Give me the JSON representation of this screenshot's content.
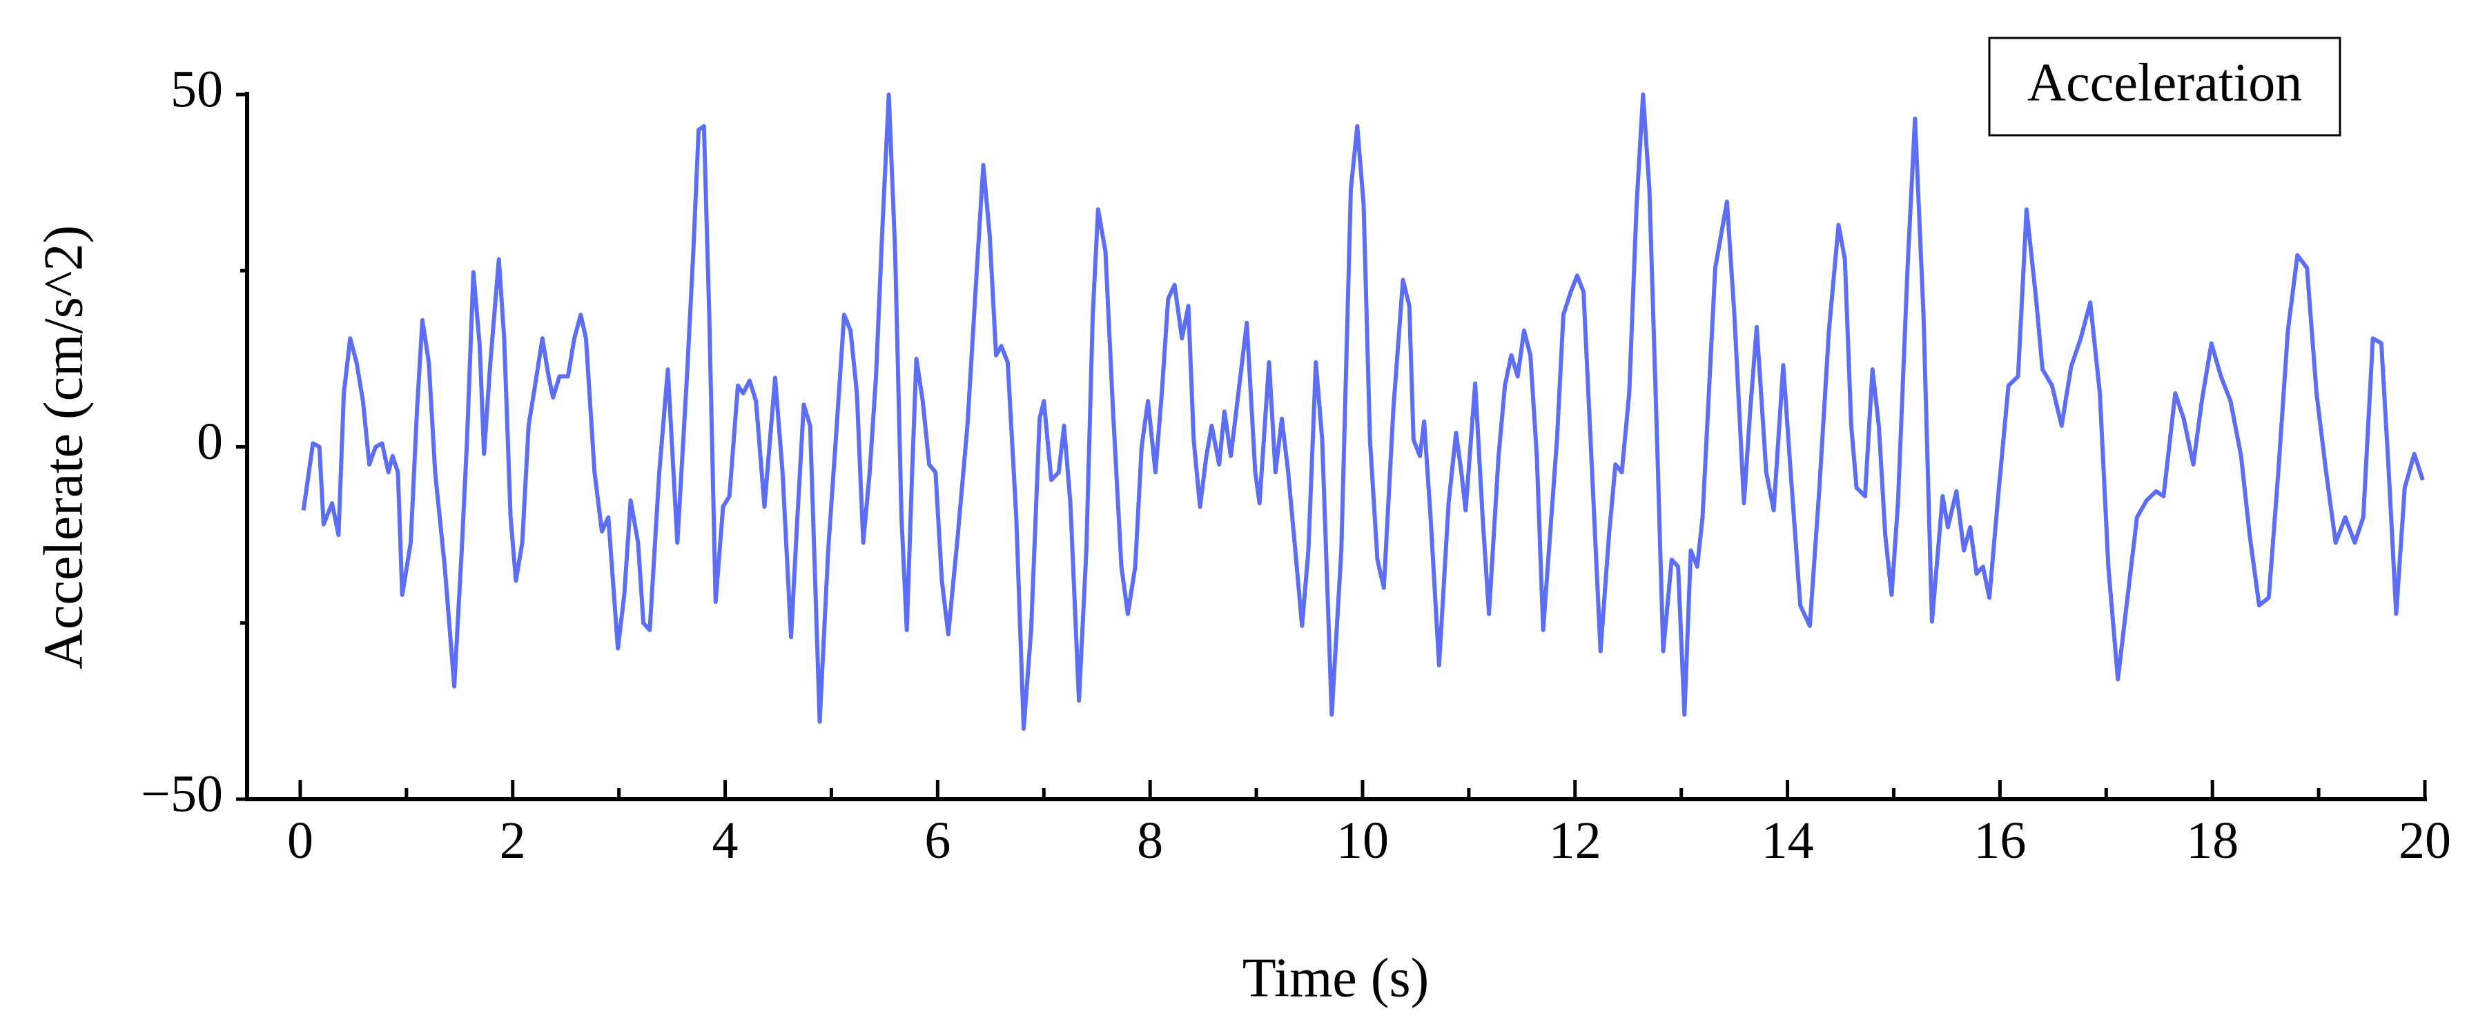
{
  "chart_data": {
    "type": "line",
    "ylabel": "Accelerate (cm/s^2)",
    "xlabel": "Time (s)",
    "legend": "upper right",
    "xlim": [
      -0.5,
      20
    ],
    "ylim": [
      -50,
      50
    ],
    "xticks": [
      0,
      2,
      4,
      6,
      8,
      10,
      12,
      14,
      16,
      18,
      20
    ],
    "xminor_ticks": [
      1,
      3,
      5,
      7,
      9,
      11,
      13,
      15,
      17,
      19
    ],
    "yticks": [
      {
        "value": -50,
        "label": "−50"
      },
      0,
      50
    ],
    "yminor_ticks": [
      -25,
      25
    ],
    "x": [
      0.03,
      0.12,
      0.18,
      0.22,
      0.3,
      0.36,
      0.41,
      0.47,
      0.53,
      0.59,
      0.65,
      0.71,
      0.77,
      0.83,
      0.87,
      0.92,
      0.96,
      1.04,
      1.1,
      1.15,
      1.21,
      1.27,
      1.36,
      1.45,
      1.52,
      1.57,
      1.63,
      1.69,
      1.73,
      1.79,
      1.87,
      1.92,
      1.98,
      2.03,
      2.09,
      2.15,
      2.21,
      2.28,
      2.34,
      2.38,
      2.44,
      2.52,
      2.58,
      2.64,
      2.69,
      2.77,
      2.84,
      2.9,
      2.99,
      3.05,
      3.11,
      3.18,
      3.23,
      3.29,
      3.38,
      3.46,
      3.55,
      3.64,
      3.7,
      3.75,
      3.8,
      3.85,
      3.91,
      3.98,
      4.04,
      4.12,
      4.17,
      4.23,
      4.29,
      4.37,
      4.47,
      4.54,
      4.62,
      4.68,
      4.74,
      4.8,
      4.89,
      4.97,
      5.05,
      5.12,
      5.18,
      5.24,
      5.3,
      5.36,
      5.42,
      5.48,
      5.54,
      5.6,
      5.66,
      5.71,
      5.76,
      5.8,
      5.86,
      5.92,
      5.98,
      6.04,
      6.1,
      6.19,
      6.28,
      6.37,
      6.43,
      6.49,
      6.55,
      6.6,
      6.66,
      6.74,
      6.81,
      6.88,
      6.96,
      7.0,
      7.07,
      7.14,
      7.19,
      7.25,
      7.33,
      7.4,
      7.46,
      7.51,
      7.58,
      7.65,
      7.73,
      7.79,
      7.86,
      7.92,
      7.98,
      8.05,
      8.11,
      8.17,
      8.23,
      8.3,
      8.36,
      8.41,
      8.47,
      8.53,
      8.58,
      8.65,
      8.7,
      8.76,
      8.85,
      8.91,
      8.99,
      9.03,
      9.12,
      9.18,
      9.24,
      9.3,
      9.36,
      9.43,
      9.49,
      9.56,
      9.62,
      9.71,
      9.8,
      9.89,
      9.95,
      10.01,
      10.07,
      10.14,
      10.2,
      10.29,
      10.38,
      10.44,
      10.48,
      10.54,
      10.58,
      10.64,
      10.72,
      10.81,
      10.88,
      10.93,
      10.97,
      11.06,
      11.13,
      11.19,
      11.28,
      11.34,
      11.4,
      11.46,
      11.52,
      11.58,
      11.64,
      11.7,
      11.77,
      11.83,
      11.89,
      11.96,
      12.02,
      12.08,
      12.14,
      12.24,
      12.32,
      12.38,
      12.44,
      12.51,
      12.58,
      12.64,
      12.7,
      12.77,
      12.83,
      12.91,
      12.97,
      13.03,
      13.09,
      13.15,
      13.2,
      13.32,
      13.43,
      13.5,
      13.59,
      13.65,
      13.71,
      13.8,
      13.87,
      13.96,
      14.03,
      14.12,
      14.21,
      14.3,
      14.39,
      14.48,
      14.54,
      14.6,
      14.65,
      14.73,
      14.8,
      14.86,
      14.92,
      14.98,
      15.04,
      15.13,
      15.2,
      15.28,
      15.36,
      15.46,
      15.51,
      15.59,
      15.66,
      15.72,
      15.78,
      15.84,
      15.9,
      15.99,
      16.08,
      16.17,
      16.25,
      16.34,
      16.4,
      16.49,
      16.58,
      16.67,
      16.76,
      16.85,
      16.94,
      17.02,
      17.11,
      17.2,
      17.29,
      17.38,
      17.47,
      17.54,
      17.65,
      17.73,
      17.82,
      17.9,
      17.99,
      18.08,
      18.17,
      18.27,
      18.35,
      18.44,
      18.53,
      18.62,
      18.71,
      18.8,
      18.89,
      18.98,
      19.07,
      19.16,
      19.25,
      19.34,
      19.42,
      19.51,
      19.59,
      19.66,
      19.73,
      19.81,
      19.9,
      19.98
    ],
    "series": [
      {
        "name": "Acceleration",
        "color": "#5b6ef5",
        "values": [
          -9,
          0.5,
          0,
          -11,
          -8,
          -12.5,
          7.6,
          15.4,
          12,
          6.5,
          -2.5,
          0,
          0.5,
          -3.6,
          -1.3,
          -3.6,
          -21,
          -13.6,
          5.4,
          18,
          12,
          -3.6,
          -17,
          -34,
          -14.7,
          1,
          24.8,
          14.3,
          -1,
          12,
          26.6,
          15.4,
          -10,
          -19,
          -13.6,
          3,
          8.7,
          15.4,
          9.8,
          7,
          10,
          10,
          15.4,
          18.75,
          15.4,
          -3.6,
          -12,
          -10,
          -28.6,
          -21,
          -7.6,
          -13.6,
          -25,
          -26,
          -3.6,
          11,
          -13.6,
          10,
          27.7,
          45,
          45.5,
          18.75,
          -22,
          -8.5,
          -7,
          8.7,
          7.6,
          9.4,
          6.5,
          -8.5,
          9.8,
          -3.6,
          -27,
          -10,
          6,
          3,
          -39,
          -14.7,
          3,
          18.75,
          16.5,
          7.6,
          -13.6,
          -3.6,
          10,
          31,
          50,
          27.7,
          -10,
          -26,
          -3.6,
          12.5,
          6.5,
          -2.5,
          -3.6,
          -19,
          -26.6,
          -12.5,
          3,
          25.4,
          40,
          30,
          13,
          14.3,
          12,
          -10,
          -40,
          -26,
          4,
          6.5,
          -4.7,
          -3.6,
          3,
          -8,
          -36,
          -14.7,
          18.75,
          33.7,
          27.7,
          5.4,
          -17,
          -23.7,
          -17,
          0,
          6.5,
          -3.6,
          7.6,
          21,
          23,
          15.4,
          20,
          1,
          -8.5,
          -1.3,
          3,
          -2.5,
          5,
          -1.3,
          10,
          17.6,
          -3.6,
          -8,
          12,
          -3.6,
          4,
          -3.6,
          -13.6,
          -25.4,
          -14.7,
          12,
          1,
          -38,
          -14.7,
          36.6,
          45.5,
          34.4,
          1,
          -16,
          -20,
          5.4,
          23.7,
          20,
          1,
          -1.3,
          3.6,
          -10,
          -31,
          -8,
          2,
          -3.6,
          -9,
          9,
          -10,
          -23.7,
          -1.3,
          8.7,
          13,
          10,
          16.5,
          13,
          -1.3,
          -26,
          -11.4,
          1,
          18.75,
          22,
          24.3,
          22,
          3,
          -29,
          -12.5,
          -2.5,
          -3.6,
          7.6,
          34.4,
          50,
          36.6,
          2,
          -29,
          -16,
          -17,
          -38,
          -14.7,
          -17,
          -10,
          25.4,
          34.8,
          18.75,
          -8,
          5.4,
          17,
          -3.6,
          -9,
          11.6,
          -3.6,
          -22.5,
          -25.4,
          -5.8,
          16.5,
          31.5,
          26.6,
          3,
          -5.8,
          -7,
          11,
          3,
          -12.5,
          -21,
          -8,
          25.4,
          46.6,
          18.75,
          -24.8,
          -7,
          -11.4,
          -6.3,
          -14.7,
          -11.4,
          -18,
          -17,
          -21.4,
          -5.8,
          8.7,
          10,
          33.7,
          21,
          11,
          8.7,
          3,
          11.4,
          15.4,
          20.5,
          7.6,
          -17,
          -33,
          -21.4,
          -10,
          -7.6,
          -6.3,
          -7,
          7.6,
          4,
          -2.5,
          6.5,
          14.7,
          10,
          6.5,
          -1.3,
          -12.5,
          -22.5,
          -21.4,
          -3.6,
          16.5,
          27.2,
          25.4,
          7.6,
          -3.6,
          -13.6,
          -10,
          -13.6,
          -10,
          15.4,
          14.7,
          -3.6,
          -23.7,
          -5.8,
          -1,
          -4.7
        ]
      }
    ]
  }
}
